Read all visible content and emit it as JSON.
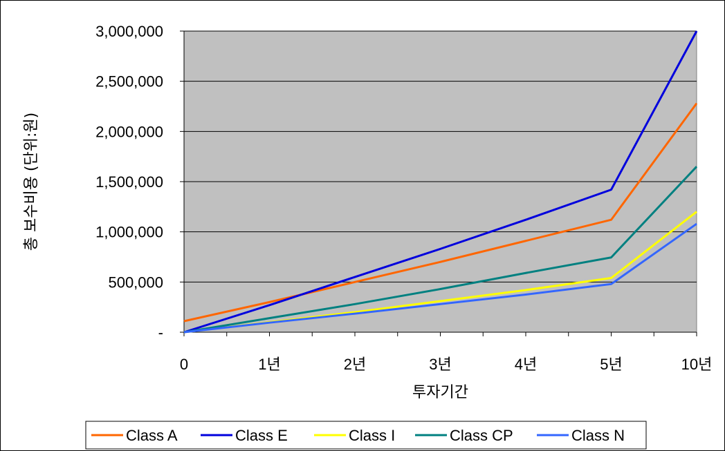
{
  "chart_data": {
    "type": "line",
    "categories": [
      "0",
      "1년",
      "2년",
      "3년",
      "4년",
      "5년",
      "10년"
    ],
    "xlabel": "투자기간",
    "ylabel": "총 보수비용 (단위:원)",
    "ylim": [
      0,
      3000000
    ],
    "y_ticks": [
      {
        "value": 0,
        "label": "-"
      },
      {
        "value": 500000,
        "label": "500,000"
      },
      {
        "value": 1000000,
        "label": "1,000,000"
      },
      {
        "value": 1500000,
        "label": "1,500,000"
      },
      {
        "value": 2000000,
        "label": "2,000,000"
      },
      {
        "value": 2500000,
        "label": "2,500,000"
      },
      {
        "value": 3000000,
        "label": "3,000,000"
      }
    ],
    "grid": true,
    "plot_background": "#C0C0C0",
    "legend_position": "bottom",
    "series": [
      {
        "name": "Class A",
        "color": "#FF6600",
        "values": [
          110000,
          300000,
          500000,
          700000,
          910000,
          1120000,
          2280000
        ]
      },
      {
        "name": "Class E",
        "color": "#0000DD",
        "values": [
          0,
          270000,
          550000,
          830000,
          1120000,
          1420000,
          3000000
        ]
      },
      {
        "name": "Class I",
        "color": "#FFFF00",
        "values": [
          0,
          100000,
          200000,
          310000,
          420000,
          540000,
          1200000
        ]
      },
      {
        "name": "Class CP",
        "color": "#008080",
        "values": [
          0,
          140000,
          280000,
          430000,
          590000,
          745000,
          1650000
        ]
      },
      {
        "name": "Class N",
        "color": "#3366FF",
        "values": [
          0,
          95000,
          185000,
          280000,
          375000,
          480000,
          1080000
        ]
      }
    ]
  }
}
